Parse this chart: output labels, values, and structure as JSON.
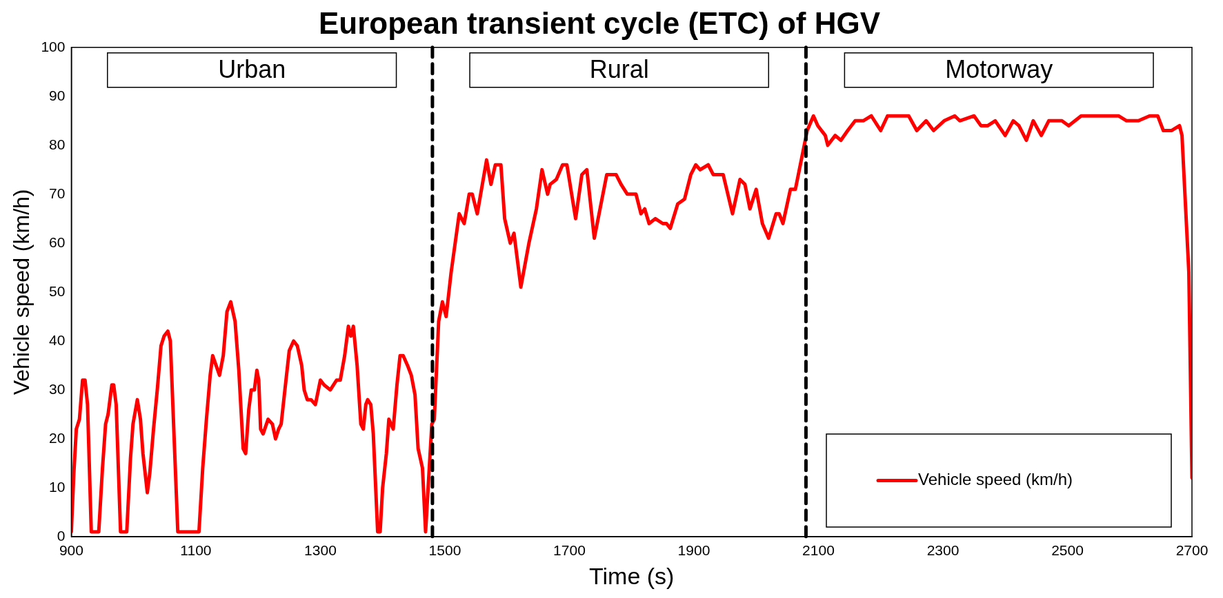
{
  "chart_data": {
    "type": "line",
    "title": "European transient cycle (ETC) of HGV",
    "xlabel": "Time (s)",
    "ylabel": "Vehicle speed (km/h)",
    "xlim": [
      900,
      2700
    ],
    "xticks": [
      900,
      1100,
      1300,
      1500,
      1700,
      1900,
      2100,
      2300,
      2500,
      2700
    ],
    "ylim": [
      0,
      100
    ],
    "yticks": [
      0,
      10,
      20,
      30,
      40,
      50,
      60,
      70,
      80,
      90,
      100
    ],
    "grid": false,
    "legend": "bottom right",
    "marker": "none",
    "line_style": "solid",
    "ref_lines": [
      {
        "axis": "x",
        "value": 1480,
        "color": "#000000",
        "line_style": "dashed"
      },
      {
        "axis": "x",
        "value": 2080,
        "color": "#000000",
        "line_style": "dashed"
      }
    ],
    "annotations": [
      "Urban",
      "Rural",
      "Motorway"
    ],
    "series": [
      {
        "name": "Vehicle speed (km/h)",
        "color": "#ff0000",
        "x": [
          900,
          904,
          908,
          913,
          918,
          922,
          926,
          932,
          944,
          950,
          955,
          959,
          965,
          968,
          972,
          979,
          989,
          995,
          999,
          1006,
          1011,
          1015,
          1022,
          1026,
          1032,
          1038,
          1044,
          1049,
          1055,
          1059,
          1071,
          1105,
          1111,
          1117,
          1123,
          1127,
          1138,
          1144,
          1150,
          1156,
          1163,
          1169,
          1176,
          1180,
          1185,
          1189,
          1194,
          1198,
          1201,
          1204,
          1208,
          1216,
          1223,
          1228,
          1233,
          1237,
          1243,
          1250,
          1257,
          1263,
          1270,
          1274,
          1279,
          1285,
          1292,
          1300,
          1306,
          1316,
          1326,
          1332,
          1339,
          1345,
          1349,
          1353,
          1359,
          1365,
          1369,
          1373,
          1376,
          1381,
          1385,
          1392,
          1396,
          1400,
          1406,
          1410,
          1417,
          1423,
          1428,
          1433,
          1440,
          1446,
          1452,
          1457,
          1464,
          1469,
          1474,
          1479,
          1483,
          1490,
          1496,
          1502,
          1510,
          1523,
          1531,
          1539,
          1544,
          1552,
          1567,
          1574,
          1581,
          1590,
          1596,
          1605,
          1611,
          1622,
          1635,
          1647,
          1656,
          1665,
          1669,
          1679,
          1689,
          1696,
          1710,
          1720,
          1728,
          1740,
          1760,
          1775,
          1783,
          1793,
          1807,
          1815,
          1821,
          1828,
          1838,
          1850,
          1856,
          1862,
          1874,
          1885,
          1895,
          1903,
          1910,
          1923,
          1931,
          1941,
          1947,
          1962,
          1974,
          1982,
          1990,
          2000,
          2010,
          2020,
          2032,
          2037,
          2043,
          2055,
          2063,
          2082,
          2092,
          2099,
          2111,
          2115,
          2127,
          2136,
          2147,
          2159,
          2172,
          2185,
          2200,
          2211,
          2224,
          2245,
          2258,
          2273,
          2285,
          2302,
          2319,
          2327,
          2350,
          2361,
          2372,
          2384,
          2400,
          2413,
          2422,
          2434,
          2445,
          2458,
          2470,
          2491,
          2502,
          2522,
          2582,
          2595,
          2614,
          2632,
          2645,
          2654,
          2667,
          2680,
          2684,
          2695,
          2700
        ],
        "values": [
          1,
          13,
          22,
          24,
          32,
          32,
          27,
          1,
          1,
          14,
          23,
          25,
          31,
          31,
          27,
          1,
          1,
          16,
          23,
          28,
          24,
          17,
          9,
          13,
          22,
          30,
          39,
          41,
          42,
          40,
          1,
          1,
          14,
          24,
          33,
          37,
          33,
          37,
          46,
          48,
          44,
          34,
          18,
          17,
          26,
          30,
          30,
          34,
          32,
          22,
          21,
          24,
          23,
          20,
          22,
          23,
          30,
          38,
          40,
          39,
          35,
          30,
          28,
          28,
          27,
          32,
          31,
          30,
          32,
          32,
          37,
          43,
          41,
          43,
          35,
          23,
          22,
          27,
          28,
          27,
          21,
          1,
          1,
          10,
          17,
          24,
          22,
          31,
          37,
          37,
          35,
          33,
          29,
          18,
          14,
          1,
          12,
          23,
          24,
          44,
          48,
          45,
          54,
          66,
          64,
          70,
          70,
          66,
          77,
          72,
          76,
          76,
          65,
          60,
          62,
          51,
          60,
          67,
          75,
          70,
          72,
          73,
          76,
          76,
          65,
          74,
          75,
          61,
          74,
          74,
          72,
          70,
          70,
          66,
          67,
          64,
          65,
          64,
          64,
          63,
          68,
          69,
          74,
          76,
          75,
          76,
          74,
          74,
          74,
          66,
          73,
          72,
          67,
          71,
          64,
          61,
          66,
          66,
          64,
          71,
          71,
          83,
          86,
          84,
          82,
          80,
          82,
          81,
          83,
          85,
          85,
          86,
          83,
          86,
          86,
          86,
          83,
          85,
          83,
          85,
          86,
          85,
          86,
          84,
          84,
          85,
          82,
          85,
          84,
          81,
          85,
          82,
          85,
          85,
          84,
          86,
          86,
          85,
          85,
          86,
          86,
          83,
          83,
          84,
          82,
          54,
          12
        ]
      }
    ]
  }
}
